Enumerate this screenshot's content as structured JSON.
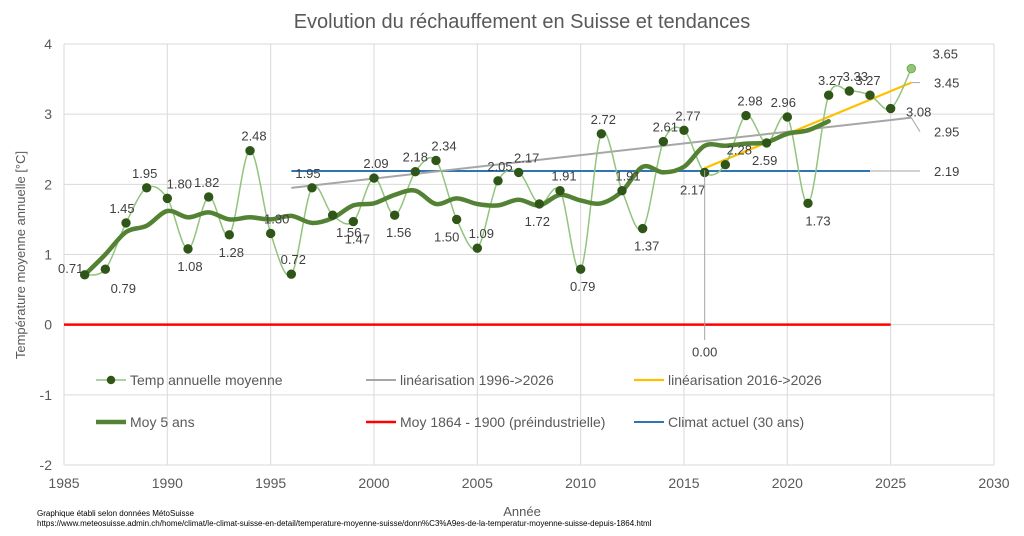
{
  "chart_data": {
    "type": "line",
    "title": "Evolution du réchauffement en Suisse et tendances",
    "xlabel": "Année",
    "ylabel": "Température moyenne annuelle [°C]",
    "xlim": [
      1985,
      2030
    ],
    "ylim": [
      -2,
      4
    ],
    "x_ticks": [
      "1985",
      "1990",
      "1995",
      "2000",
      "2005",
      "2010",
      "2015",
      "2020",
      "2025",
      "2030"
    ],
    "y_ticks": [
      "-2",
      "-1",
      "0",
      "1",
      "2",
      "3",
      "4"
    ],
    "grid": true,
    "legend_position": "bottom",
    "series": [
      {
        "name": "Temp annuelle moyenne",
        "color": "#92c47d",
        "marker_color": "#2f5618",
        "x": [
          1986,
          1987,
          1988,
          1989,
          1990,
          1991,
          1992,
          1993,
          1994,
          1995,
          1996,
          1997,
          1998,
          1999,
          2000,
          2001,
          2002,
          2003,
          2004,
          2005,
          2006,
          2007,
          2008,
          2009,
          2010,
          2011,
          2012,
          2013,
          2014,
          2015,
          2016,
          2017,
          2018,
          2019,
          2020,
          2021,
          2022,
          2023,
          2024,
          2025,
          2026
        ],
        "values": [
          0.71,
          0.79,
          1.45,
          1.95,
          1.8,
          1.08,
          1.82,
          1.28,
          2.48,
          1.3,
          0.72,
          1.95,
          1.56,
          1.47,
          2.09,
          1.56,
          2.18,
          2.34,
          1.5,
          1.09,
          2.05,
          2.17,
          1.72,
          1.91,
          0.79,
          2.72,
          1.91,
          1.37,
          2.61,
          2.77,
          2.17,
          2.28,
          2.98,
          2.59,
          2.96,
          1.73,
          3.27,
          3.33,
          3.27,
          3.08,
          3.65
        ]
      },
      {
        "name": "linéarisation 1996->2026",
        "color": "#a6a6a6",
        "x": [
          1996,
          2026
        ],
        "values": [
          1.95,
          2.95
        ]
      },
      {
        "name": "linéarisation 2016->2026",
        "color": "#ffc000",
        "x": [
          2016,
          2026
        ],
        "values": [
          2.23,
          3.45
        ]
      },
      {
        "name": "Moy 5 ans",
        "color": "#548235",
        "x": [
          1986,
          1987,
          1988,
          1989,
          1990,
          1991,
          1992,
          1993,
          1994,
          1995,
          1996,
          1997,
          1998,
          1999,
          2000,
          2001,
          2002,
          2003,
          2004,
          2005,
          2006,
          2007,
          2008,
          2009,
          2010,
          2011,
          2012,
          2013,
          2014,
          2015,
          2016,
          2017,
          2018,
          2019,
          2020,
          2021,
          2022
        ],
        "values": [
          0.71,
          1.0,
          1.32,
          1.41,
          1.62,
          1.53,
          1.6,
          1.5,
          1.53,
          1.5,
          1.55,
          1.45,
          1.52,
          1.7,
          1.73,
          1.85,
          1.91,
          1.72,
          1.8,
          1.72,
          1.7,
          1.78,
          1.7,
          1.85,
          1.77,
          1.73,
          1.9,
          2.25,
          2.17,
          2.25,
          2.55,
          2.55,
          2.58,
          2.6,
          2.72,
          2.77,
          2.9
        ]
      },
      {
        "name": "Moy 1864 - 1900 (préindustrielle)",
        "color": "#ff0000",
        "x": [
          1985,
          2025
        ],
        "values": [
          0.0,
          0.0
        ]
      },
      {
        "name": "Climat actuel (30 ans)",
        "color": "#2e75b6",
        "x": [
          1996,
          2024
        ],
        "values": [
          2.19,
          2.19
        ]
      }
    ],
    "annotations": {
      "endpoint_labels": [
        "3.65",
        "3.45",
        "2.95",
        "2.19"
      ],
      "origin_label": "0.00"
    }
  },
  "source_note": {
    "line1": "Graphique établi selon données MétoSuisse",
    "line2": "https://www.meteosuisse.admin.ch/home/climat/le-climat-suisse-en-detail/temperature-moyenne-suisse/donn%C3%A9es-de-la-temperatur-moyenne-suisse-depuis-1864.html"
  }
}
